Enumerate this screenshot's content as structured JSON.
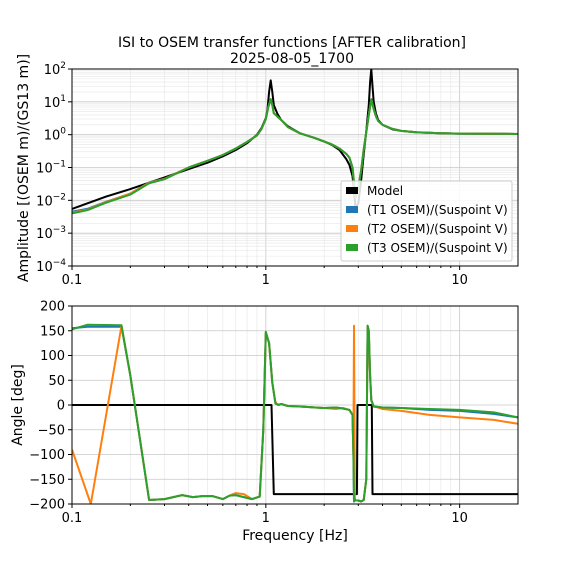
{
  "chart_data": {
    "title_lines": [
      "ISI to OSEM transfer functions [AFTER calibration]",
      "2025-08-05_1700"
    ],
    "xlabel": "Frequency [Hz]",
    "x_scale": "log",
    "xlim": [
      0.1,
      20
    ],
    "x_tick_labels": [
      "0.1",
      "1",
      "10"
    ],
    "grid": true,
    "legend_position": "lower-right of top panel",
    "panels": [
      {
        "type": "line",
        "ylabel": "Amplitude [(OSEM m)/(GS13 m)]",
        "y_scale": "log",
        "ylim": [
          0.0001,
          100
        ],
        "y_tick_labels": [
          {
            "base": "10",
            "exp": "−4"
          },
          {
            "base": "10",
            "exp": "−3"
          },
          {
            "base": "10",
            "exp": "−2"
          },
          {
            "base": "10",
            "exp": "−1"
          },
          {
            "base": "10",
            "exp": "0"
          },
          {
            "base": "10",
            "exp": "1"
          },
          {
            "base": "10",
            "exp": "2"
          }
        ],
        "series": [
          {
            "name": "Model",
            "color": "#000000",
            "x": [
              0.1,
              0.15,
              0.2,
              0.3,
              0.4,
              0.5,
              0.6,
              0.7,
              0.8,
              0.9,
              0.95,
              1.0,
              1.02,
              1.04,
              1.06,
              1.08,
              1.1,
              1.15,
              1.2,
              1.3,
              1.5,
              1.8,
              2.0,
              2.2,
              2.4,
              2.6,
              2.7,
              2.8,
              2.85,
              2.9,
              3.0,
              3.1,
              3.2,
              3.3,
              3.4,
              3.45,
              3.5,
              3.55,
              3.6,
              3.7,
              3.8,
              4.0,
              4.5,
              5,
              6,
              8,
              10,
              15,
              20
            ],
            "y": [
              0.0055,
              0.013,
              0.022,
              0.05,
              0.09,
              0.14,
              0.22,
              0.34,
              0.55,
              1.0,
              1.6,
              3.2,
              6,
              20,
              45,
              20,
              8,
              4.2,
              2.8,
              1.8,
              1.1,
              0.78,
              0.62,
              0.48,
              0.34,
              0.18,
              0.12,
              0.055,
              0.02,
              0.006,
              0.008,
              0.04,
              0.25,
              1.3,
              8,
              40,
              100,
              30,
              10,
              4.3,
              2.8,
              2.0,
              1.45,
              1.3,
              1.18,
              1.1,
              1.08,
              1.06,
              1.05
            ]
          },
          {
            "name": "(T1 OSEM)/(Suspoint V)",
            "color": "#1f77b4",
            "x": [
              0.1,
              0.12,
              0.15,
              0.2,
              0.25,
              0.3,
              0.35,
              0.4,
              0.5,
              0.6,
              0.7,
              0.8,
              0.9,
              0.95,
              1.0,
              1.03,
              1.06,
              1.08,
              1.1,
              1.15,
              1.2,
              1.3,
              1.5,
              1.8,
              2.0,
              2.2,
              2.4,
              2.6,
              2.7,
              2.8,
              2.9,
              3.0,
              3.1,
              3.2,
              3.3,
              3.4,
              3.5,
              3.6,
              3.7,
              3.8,
              4.0,
              4.5,
              5,
              6,
              8,
              10,
              15,
              20
            ],
            "y": [
              0.0045,
              0.0055,
              0.009,
              0.016,
              0.035,
              0.045,
              0.07,
              0.1,
              0.16,
              0.24,
              0.38,
              0.6,
              0.95,
              1.5,
              3.0,
              7,
              12,
              8,
              4.5,
              3.5,
              2.8,
              1.7,
              1.1,
              0.78,
              0.62,
              0.5,
              0.38,
              0.26,
              0.2,
              0.1,
              0.012,
              0.025,
              0.08,
              0.35,
              1.2,
              4.0,
              12,
              6,
              3.6,
              2.6,
              2.0,
              1.5,
              1.3,
              1.17,
              1.1,
              1.08,
              1.06,
              1.05
            ]
          },
          {
            "name": "(T2 OSEM)/(Suspoint V)",
            "color": "#ff7f0e",
            "x": [
              0.1,
              0.12,
              0.15,
              0.2,
              0.25,
              0.3,
              0.35,
              0.4,
              0.5,
              0.6,
              0.7,
              0.8,
              0.9,
              0.95,
              1.0,
              1.03,
              1.06,
              1.08,
              1.1,
              1.15,
              1.2,
              1.3,
              1.5,
              1.8,
              2.0,
              2.2,
              2.4,
              2.6,
              2.7,
              2.8,
              2.9,
              3.0,
              3.1,
              3.2,
              3.3,
              3.4,
              3.5,
              3.6,
              3.7,
              3.8,
              4.0,
              4.5,
              5,
              6,
              8,
              10,
              15,
              20
            ],
            "y": [
              0.0042,
              0.0052,
              0.0088,
              0.016,
              0.034,
              0.045,
              0.07,
              0.1,
              0.16,
              0.24,
              0.38,
              0.6,
              0.95,
              1.5,
              3.0,
              7,
              12,
              8,
              4.5,
              3.5,
              2.8,
              1.7,
              1.1,
              0.78,
              0.62,
              0.5,
              0.38,
              0.26,
              0.2,
              0.1,
              0.012,
              0.025,
              0.08,
              0.35,
              1.2,
              4.0,
              12,
              6,
              3.6,
              2.6,
              2.0,
              1.5,
              1.3,
              1.17,
              1.1,
              1.08,
              1.06,
              1.05
            ]
          },
          {
            "name": "(T3 OSEM)/(Suspoint V)",
            "color": "#2ca02c",
            "x": [
              0.1,
              0.12,
              0.15,
              0.2,
              0.25,
              0.3,
              0.35,
              0.4,
              0.5,
              0.6,
              0.7,
              0.8,
              0.9,
              0.95,
              1.0,
              1.03,
              1.06,
              1.08,
              1.1,
              1.15,
              1.2,
              1.3,
              1.5,
              1.8,
              2.0,
              2.2,
              2.4,
              2.6,
              2.7,
              2.8,
              2.9,
              3.0,
              3.1,
              3.2,
              3.3,
              3.4,
              3.5,
              3.6,
              3.7,
              3.8,
              4.0,
              4.5,
              5,
              6,
              8,
              10,
              15,
              20
            ],
            "y": [
              0.004,
              0.005,
              0.0085,
              0.015,
              0.033,
              0.044,
              0.068,
              0.1,
              0.16,
              0.24,
              0.38,
              0.6,
              0.95,
              1.5,
              3.0,
              7,
              12,
              8,
              4.5,
              3.5,
              2.8,
              1.7,
              1.1,
              0.78,
              0.62,
              0.5,
              0.38,
              0.26,
              0.2,
              0.1,
              0.012,
              0.025,
              0.08,
              0.35,
              1.2,
              4.0,
              12,
              6,
              3.6,
              2.6,
              2.0,
              1.5,
              1.3,
              1.17,
              1.1,
              1.08,
              1.06,
              1.05
            ]
          }
        ]
      },
      {
        "type": "line",
        "ylabel": "Angle [deg]",
        "y_scale": "linear",
        "ylim": [
          -200,
          200
        ],
        "y_ticks": [
          -200,
          -150,
          -100,
          -50,
          0,
          50,
          100,
          150,
          200
        ],
        "series": [
          {
            "name": "Model",
            "color": "#000000",
            "x": [
              0.1,
              1.05,
              1.07,
              1.1,
              2.95,
              2.97,
              3.5,
              3.52,
              3.55,
              3.6,
              20
            ],
            "y": [
              0,
              0,
              0,
              -180,
              -180,
              0,
              0,
              0,
              -180,
              -180,
              -180
            ]
          },
          {
            "name": "(T1 OSEM)/(Suspoint V)",
            "color": "#1f77b4",
            "x": [
              0.1,
              0.12,
              0.18,
              0.2,
              0.25,
              0.3,
              0.37,
              0.42,
              0.47,
              0.53,
              0.6,
              0.65,
              0.7,
              0.77,
              0.85,
              0.93,
              0.97,
              1.0,
              1.04,
              1.08,
              1.12,
              1.16,
              1.2,
              1.3,
              1.5,
              1.8,
              2.0,
              2.3,
              2.5,
              2.7,
              2.8,
              2.83,
              2.85,
              2.88,
              2.9,
              3.0,
              3.1,
              3.2,
              3.3,
              3.35,
              3.4,
              3.45,
              3.5,
              3.6,
              3.8,
              4,
              5,
              7,
              10,
              15,
              20
            ],
            "y": [
              155,
              158,
              158,
              60,
              -192,
              -190,
              -182,
              -186,
              -184,
              -184,
              -190,
              -183,
              -182,
              -186,
              -190,
              -185,
              -50,
              145,
              125,
              45,
              5,
              0,
              2,
              -2,
              -3,
              -5,
              -6,
              -5,
              -7,
              -10,
              -20,
              -100,
              -195,
              -190,
              -193,
              -193,
              -195,
              -192,
              -150,
              160,
              150,
              60,
              10,
              -3,
              -4,
              -5,
              -6,
              -10,
              -12,
              -18,
              -25
            ]
          },
          {
            "name": "(T2 OSEM)/(Suspoint V)",
            "color": "#ff7f0e",
            "x": [
              0.1,
              0.125,
              0.18,
              0.2,
              0.25,
              0.3,
              0.37,
              0.42,
              0.47,
              0.53,
              0.6,
              0.65,
              0.7,
              0.77,
              0.85,
              0.93,
              0.97,
              1.0,
              1.04,
              1.08,
              1.12,
              1.16,
              1.2,
              1.3,
              1.5,
              1.8,
              2.0,
              2.3,
              2.5,
              2.7,
              2.8,
              2.83,
              2.85,
              2.88,
              2.9,
              3.0,
              3.1,
              3.2,
              3.3,
              3.35,
              3.4,
              3.45,
              3.5,
              3.6,
              3.8,
              4,
              5,
              7,
              10,
              15,
              20
            ],
            "y": [
              -90,
              -200,
              160,
              60,
              -192,
              -190,
              -182,
              -186,
              -184,
              -184,
              -190,
              -183,
              -178,
              -180,
              -190,
              -185,
              -50,
              145,
              125,
              45,
              5,
              0,
              2,
              -2,
              -3,
              -5,
              -6,
              -8,
              -6,
              -10,
              -20,
              -100,
              160,
              -190,
              -193,
              -193,
              -195,
              -192,
              -150,
              160,
              150,
              60,
              10,
              -3,
              -5,
              -8,
              -12,
              -20,
              -25,
              -30,
              -38
            ]
          },
          {
            "name": "(T3 OSEM)/(Suspoint V)",
            "color": "#2ca02c",
            "x": [
              0.1,
              0.12,
              0.18,
              0.2,
              0.25,
              0.3,
              0.37,
              0.42,
              0.47,
              0.53,
              0.6,
              0.65,
              0.7,
              0.77,
              0.85,
              0.93,
              0.97,
              1.0,
              1.04,
              1.08,
              1.12,
              1.16,
              1.2,
              1.3,
              1.5,
              1.8,
              2.0,
              2.3,
              2.5,
              2.7,
              2.8,
              2.83,
              2.85,
              2.88,
              2.9,
              3.0,
              3.1,
              3.2,
              3.3,
              3.35,
              3.4,
              3.45,
              3.5,
              3.6,
              3.8,
              4,
              5,
              7,
              10,
              15,
              20
            ],
            "y": [
              153,
              162,
              161,
              60,
              -192,
              -190,
              -182,
              -186,
              -184,
              -184,
              -190,
              -183,
              -182,
              -186,
              -190,
              -185,
              -50,
              148,
              125,
              45,
              3,
              0,
              2,
              -2,
              -3,
              -5,
              -6,
              -5,
              -7,
              -10,
              -20,
              -100,
              -195,
              -190,
              -193,
              -193,
              -195,
              -192,
              -150,
              160,
              150,
              60,
              10,
              -3,
              -4,
              -5,
              -6,
              -8,
              -10,
              -15,
              -25
            ]
          }
        ]
      }
    ]
  }
}
